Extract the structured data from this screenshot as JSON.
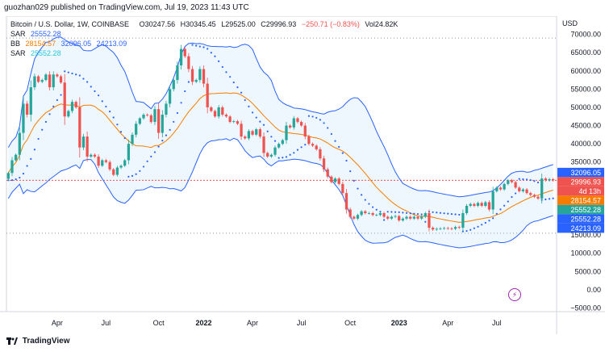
{
  "header": {
    "published": "guozhan029 published on TradingView.com, Jul 19, 2023 11:43 UTC"
  },
  "chart_data": {
    "type": "candlestick",
    "symbol": "Bitcoin / U.S. Dollar, 1W, COINBASE",
    "ohlc": {
      "o": "O30247.56",
      "h": "H30345.45",
      "l": "L29525.00",
      "c": "C29996.93",
      "change": "−250.71 (−0.83%)",
      "vol": "Vol24.82K"
    },
    "indicators": [
      {
        "name": "SAR",
        "values": [
          "25552.28"
        ]
      },
      {
        "name": "BB",
        "values": [
          "28154.57",
          "32096.05",
          "24213.09"
        ]
      },
      {
        "name": "SAR",
        "values": [
          "25552.28"
        ]
      }
    ],
    "currency": "USD",
    "y_ticks": [
      "70000.00",
      "65000.00",
      "60000.00",
      "55000.00",
      "50000.00",
      "45000.00",
      "40000.00",
      "35000.00",
      "30000.00",
      "25000.00",
      "20000.00",
      "15000.00",
      "10000.00",
      "5000.00",
      "0.00",
      "−5000.00"
    ],
    "x_ticks": [
      "Apr",
      "Jul",
      "Oct",
      "2022",
      "Apr",
      "Jul",
      "Oct",
      "2023",
      "Apr",
      "Jul"
    ],
    "x_tick_weeks": [
      13,
      26,
      40,
      52,
      65,
      78,
      91,
      104,
      117,
      130
    ],
    "ylim": [
      -6000,
      75000
    ],
    "price_labels": [
      {
        "text": "32096.05",
        "value": 32096.05,
        "color": "#2962ff"
      },
      {
        "text": "29996.93",
        "value": 29996.93,
        "color": "#ef5350"
      },
      {
        "text": "4d 13h",
        "value": 27800,
        "color": "#ef5350"
      },
      {
        "text": "28154.57",
        "value": 28154.57,
        "color": "#f57c00"
      },
      {
        "text": "25552.28",
        "value": 25552.28,
        "color": "#26a69a"
      },
      {
        "text": "25552.28",
        "value": 25552.28,
        "color": "#2962ff"
      },
      {
        "text": "24213.09",
        "value": 24213.09,
        "color": "#2962ff"
      }
    ],
    "dashed_levels": [
      69000,
      15500
    ],
    "last_price": 29996.93,
    "closes": [
      32000,
      35500,
      37000,
      43000,
      51000,
      48000,
      55500,
      58500,
      57000,
      57500,
      59000,
      55500,
      59000,
      58500,
      56800,
      47500,
      49000,
      51500,
      50000,
      39000,
      42000,
      36500,
      37000,
      36500,
      34000,
      35500,
      35000,
      33000,
      31500,
      33500,
      34000,
      35500,
      40000,
      42500,
      45500,
      47000,
      48000,
      47800,
      46000,
      49500,
      43000,
      48000,
      51000,
      55000,
      57500,
      61500,
      66000,
      64000,
      60500,
      57000,
      57500,
      60500,
      56500,
      50000,
      49000,
      47500,
      50000,
      48000,
      47500,
      46000,
      46200,
      45500,
      42000,
      41500,
      43500,
      42500,
      44000,
      42000,
      37500,
      36500,
      37000,
      39000,
      40000,
      41000,
      45000,
      44500,
      47000,
      46000,
      45000,
      42000,
      40000,
      39500,
      38500,
      36000,
      33000,
      31000,
      29500,
      30500,
      29000,
      26500,
      22000,
      20000,
      19500,
      20500,
      21500,
      21000,
      21000,
      20500,
      20500,
      21000,
      20000,
      19500,
      20000,
      20200,
      19000,
      19500,
      20000,
      19500,
      20000,
      19500,
      20000,
      21000,
      17000,
      16500,
      16700,
      16800,
      16900,
      16800,
      16700,
      17200,
      17000,
      21000,
      23000,
      23500,
      23000,
      23800,
      23000,
      24000,
      22000,
      27000,
      28000,
      27500,
      29000,
      30000,
      29500,
      28000,
      27000,
      27500,
      26500,
      26000,
      25500,
      25000,
      30500,
      30000,
      30300,
      30000
    ]
  },
  "footer": {
    "logo_text": "TradingView"
  }
}
